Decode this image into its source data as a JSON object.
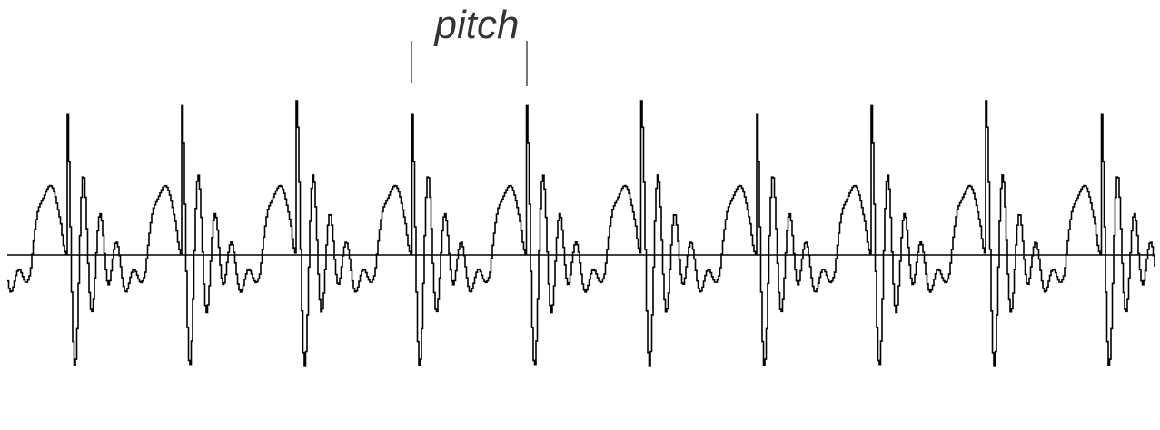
{
  "annotation": {
    "label": "pitch"
  },
  "waveform": {
    "periods": 10,
    "stroke_color": "#000000",
    "axis_color": "#000000",
    "label_color": "#333333"
  }
}
